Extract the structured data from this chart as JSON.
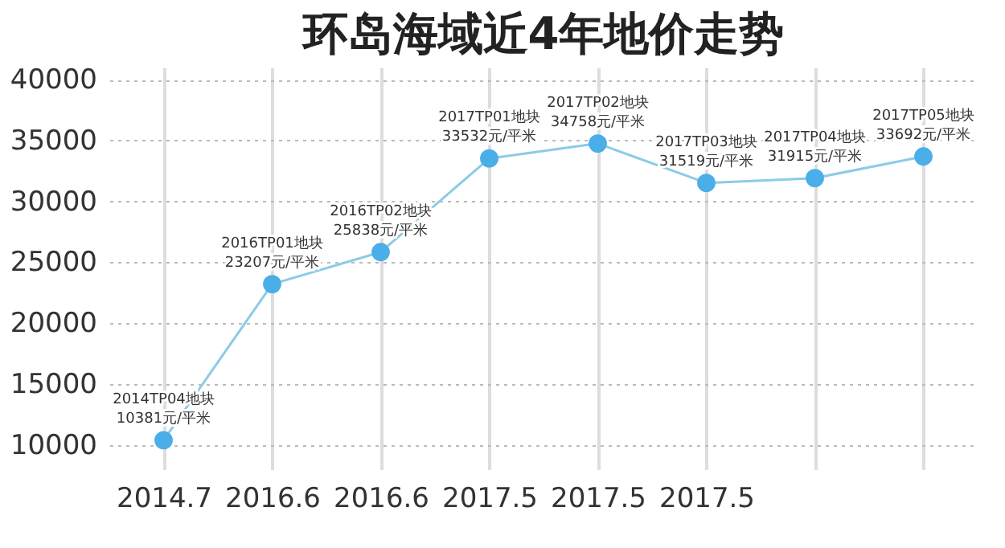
{
  "chart_data": {
    "type": "line",
    "title": "环岛海域近4年地价走势",
    "categories": [
      "2014.7",
      "2016.6",
      "2016.6",
      "2017.5",
      "2017.5",
      "2017.5",
      null,
      null
    ],
    "series": [
      {
        "color": "#4aaee8",
        "values": [
          10381,
          23207,
          25838,
          33532,
          34758,
          31519,
          31915,
          33692
        ]
      }
    ],
    "value_labels": [
      "2014TP04地块\n10381元/平米",
      "2016TP01地块\n23207元/平米",
      "2016TP02地块\n25838元/平米",
      "2017TP01地块\n33532元/平米",
      "2017TP02地块\n34758元/平米",
      "2017TP03地块\n31519元/平米",
      "2017TP04地块\n31915元/平米",
      "2017TP05地块\n33692元/平米"
    ],
    "ylim": [
      8000,
      41000
    ],
    "yticks": [
      10000,
      15000,
      20000,
      25000,
      30000,
      35000,
      40000
    ],
    "grid": true,
    "marker": "circle",
    "line_style": "solid"
  }
}
